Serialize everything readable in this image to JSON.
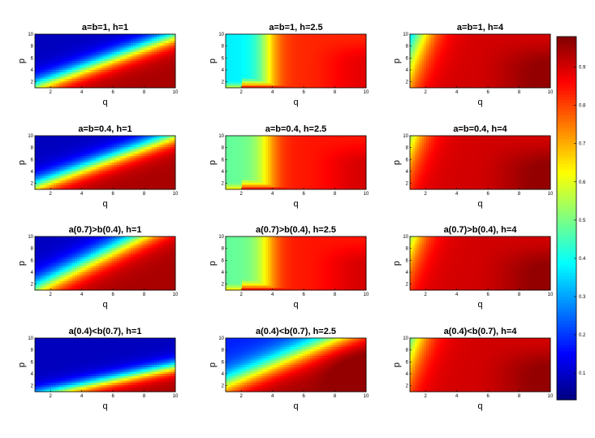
{
  "chart_data": {
    "type": "heatmap",
    "layout": {
      "rows": 4,
      "cols": 3
    },
    "colormap": "jet",
    "colorbar": {
      "range": [
        0.03,
        0.98
      ],
      "ticks": [
        0.1,
        0.2,
        0.3,
        0.4,
        0.5,
        0.6,
        0.7,
        0.8,
        0.9
      ],
      "tick_labels": [
        "0.1",
        "0.2",
        "0.3",
        "0.4",
        "0.5",
        "0.6",
        "0.7",
        "0.8",
        "0.9"
      ],
      "placement": "right"
    },
    "x_axis": {
      "label": "q",
      "range": [
        1,
        10
      ],
      "ticks": [
        2,
        4,
        6,
        8,
        10
      ],
      "tick_labels": [
        "2",
        "4",
        "6",
        "8",
        "10"
      ]
    },
    "y_axis": {
      "label": "p",
      "range": [
        1,
        10
      ],
      "ticks": [
        2,
        4,
        6,
        8,
        10
      ],
      "tick_labels": [
        "2",
        "4",
        "6",
        "8",
        "10"
      ]
    },
    "panels": [
      {
        "title": "a=b=1, h=1",
        "h": 1
      },
      {
        "title": "a=b=1, h=2.5",
        "h": 2.5
      },
      {
        "title": "a=b=1, h=4",
        "h": 4
      },
      {
        "title": "a=b=0.4, h=1",
        "h": 1
      },
      {
        "title": "a=b=0.4, h=2.5",
        "h": 2.5
      },
      {
        "title": "a=b=0.4, h=4",
        "h": 4
      },
      {
        "title": "a(0.7)>b(0.4), h=1",
        "h": 1
      },
      {
        "title": "a(0.7)>b(0.4), h=2.5",
        "h": 2.5
      },
      {
        "title": "a(0.7)>b(0.4), h=4",
        "h": 4
      },
      {
        "title": "a(0.4)<b(0.7), h=1",
        "h": 1
      },
      {
        "title": "a(0.4)<b(0.7), h=2.5",
        "h": 2.5
      },
      {
        "title": "a(0.4)<b(0.7), h=4",
        "h": 4
      }
    ]
  }
}
